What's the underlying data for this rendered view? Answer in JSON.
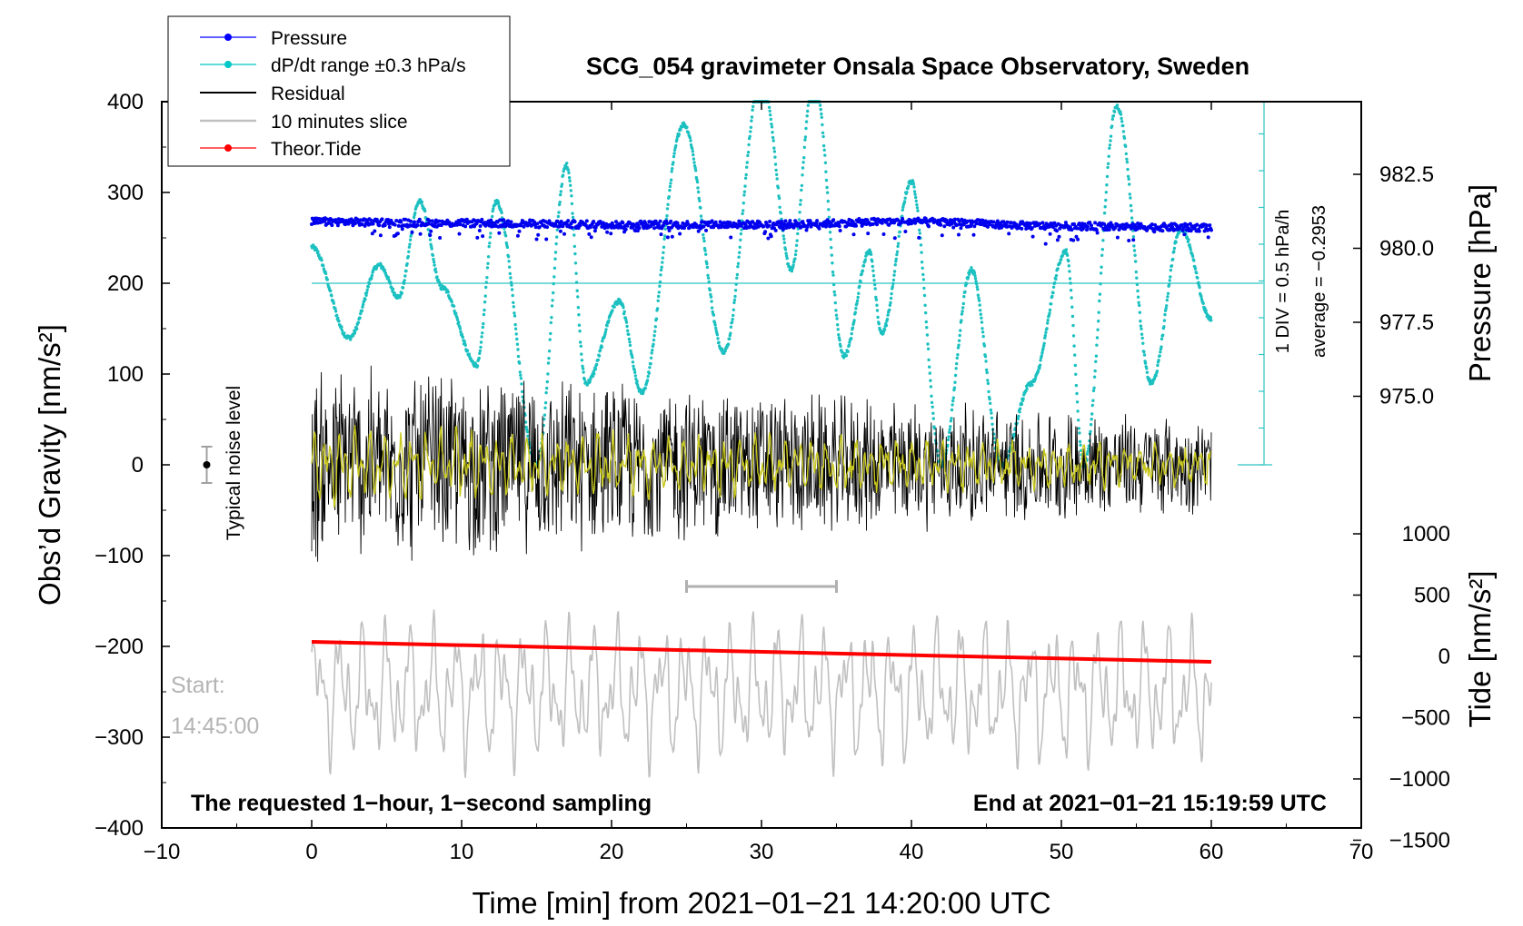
{
  "chart_data": {
    "type": "line",
    "title": "SCG_054 gravimeter Onsala Space Observatory, Sweden",
    "xlabel": "Time [min] from 2021−01−21 14:20:00 UTC",
    "ylabel_left": "Obs’d Gravity [nm/s²]",
    "ylabel_pressure": "Pressure [hPa]",
    "ylabel_tide": "Tide [nm/s²]",
    "xlim": [
      -10,
      70
    ],
    "ylim": [
      -400,
      400
    ],
    "x_ticks": [
      "−10",
      "0",
      "10",
      "20",
      "30",
      "40",
      "50",
      "60",
      "70"
    ],
    "y_ticks": [
      "−400",
      "−300",
      "−200",
      "−100",
      "0",
      "100",
      "200",
      "300",
      "400"
    ],
    "pressure_ticks": [
      "975.0",
      "977.5",
      "980.0",
      "982.5"
    ],
    "tide_ticks": [
      "−1500",
      "−1000",
      "−500",
      "0",
      "500",
      "1000"
    ],
    "legend": {
      "position": "top-left",
      "entries": [
        {
          "label": "Pressure",
          "color": "#0000ff",
          "marker": true
        },
        {
          "label": "dP/dt range ±0.3 hPa/s",
          "color": "#00c8c8",
          "marker": true
        },
        {
          "label": "Residual",
          "color": "#000000",
          "marker": false
        },
        {
          "label": "10 minutes slice",
          "color": "#c0c0c0",
          "marker": false
        },
        {
          "label": "Theor.Tide",
          "color": "#ff0000",
          "marker": true
        }
      ]
    },
    "annotations": {
      "noise_label": "Typical noise level",
      "scale_div": "1 DIV = 0.5 hPa/h",
      "scale_avg": "average = −0.2953",
      "start_label": "Start:",
      "start_time": "14:45:00",
      "bottom_left": "The requested 1−hour, 1−second sampling",
      "bottom_right": "End at 2021−01−21 15:19:59 UTC"
    },
    "slice_range_min": [
      25,
      35
    ],
    "noise_level": {
      "x": -7,
      "center": 0,
      "half_range": 20
    },
    "series": [
      {
        "name": "Pressure",
        "unit": "hPa",
        "x": [
          0,
          10,
          20,
          30,
          40,
          50,
          60
        ],
        "values": [
          980.9,
          980.85,
          980.8,
          980.8,
          980.9,
          980.75,
          980.7
        ]
      },
      {
        "name": "dP/dt",
        "unit": "gravity-axis units",
        "x": [
          0,
          2.5,
          4.5,
          5.8,
          7.2,
          8.7,
          11,
          12.3,
          15,
          17,
          18.3,
          20.5,
          22,
          24.8,
          27.5,
          30,
          32,
          33.5,
          35.5,
          37.2,
          38,
          40,
          42,
          44,
          46,
          48,
          50.3,
          51.5,
          53.7,
          56,
          58,
          60
        ],
        "values": [
          240,
          140,
          220,
          185,
          290,
          195,
          110,
          290,
          0,
          330,
          90,
          180,
          80,
          375,
          125,
          430,
          215,
          430,
          120,
          235,
          145,
          312,
          0,
          215,
          0,
          90,
          235,
          0,
          395,
          90,
          260,
          160
        ]
      },
      {
        "name": "Residual",
        "unit": "nm/s²",
        "center": 0,
        "amplitude_early": 120,
        "amplitude_late": 55
      },
      {
        "name": "10 minutes slice",
        "unit": "nm/s²",
        "x_range": [
          0,
          60
        ],
        "center": -250,
        "amplitude": 70,
        "peaks": [
          -150,
          -170,
          -150,
          -150,
          -160
        ]
      },
      {
        "name": "Theor.Tide",
        "unit": "nm/s²",
        "x": [
          0,
          60
        ],
        "values": [
          -195,
          -217
        ]
      }
    ]
  }
}
